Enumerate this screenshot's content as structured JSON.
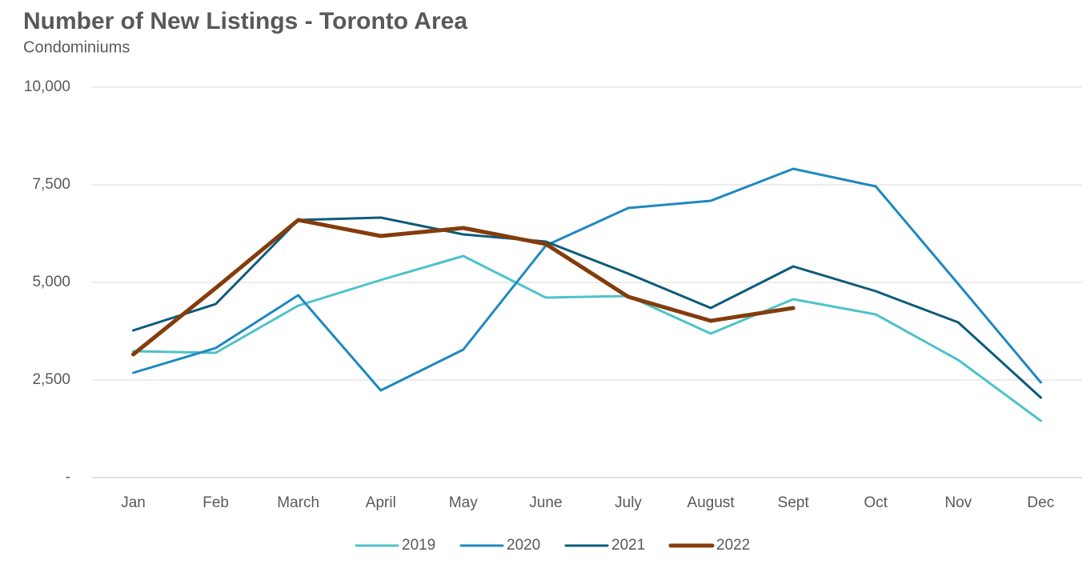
{
  "chart_data": {
    "type": "line",
    "title": "Number of New Listings - Toronto Area",
    "subtitle": "Condominiums",
    "categories": [
      "Jan",
      "Feb",
      "March",
      "April",
      "May",
      "June",
      "July",
      "August",
      "Sept",
      "Oct",
      "Nov",
      "Dec"
    ],
    "series": [
      {
        "name": "2019",
        "color": "#4dc3c9",
        "linewidth": 3,
        "values": [
          3238,
          3197,
          4406,
          5061,
          5676,
          4611,
          4652,
          3689,
          4570,
          4180,
          3012,
          1455
        ]
      },
      {
        "name": "2020",
        "color": "#1f88c0",
        "linewidth": 3,
        "values": [
          2684,
          3320,
          4672,
          2234,
          3279,
          5943,
          6906,
          7090,
          7910,
          7459,
          4959,
          2439
        ]
      },
      {
        "name": "2021",
        "color": "#0d5b7a",
        "linewidth": 3,
        "values": [
          3770,
          4447,
          6598,
          6660,
          6230,
          6045,
          5225,
          4344,
          5410,
          4775,
          3975,
          2049
        ]
      },
      {
        "name": "2022",
        "color": "#843c0c",
        "linewidth": 5,
        "values": [
          3156,
          4857,
          6598,
          6189,
          6393,
          5984,
          4631,
          4016,
          4344,
          null,
          null,
          null
        ]
      }
    ],
    "ylim": [
      0,
      10000
    ],
    "yticks": [
      {
        "value": 0,
        "label": "-"
      },
      {
        "value": 2500,
        "label": "2,500"
      },
      {
        "value": 5000,
        "label": "5,000"
      },
      {
        "value": 7500,
        "label": "7,500"
      },
      {
        "value": 10000,
        "label": "10,000"
      }
    ],
    "grid": true,
    "legend": "bottom"
  }
}
